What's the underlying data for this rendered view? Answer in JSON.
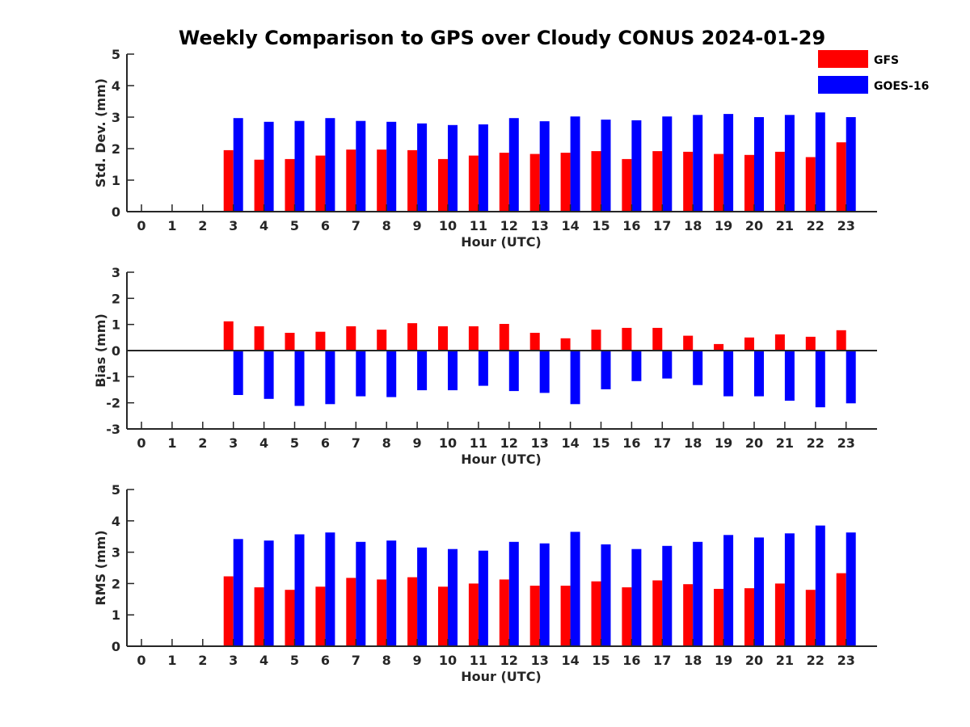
{
  "title": "Weekly Comparison to GPS over Cloudy CONUS 2024-01-29",
  "colors": {
    "GFS": "#ff0000",
    "GOES-16": "#0000ff",
    "axis": "#262626"
  },
  "legend": [
    {
      "label": "GFS",
      "color": "#ff0000"
    },
    {
      "label": "GOES-16",
      "color": "#0000ff"
    }
  ],
  "chart_data": [
    {
      "type": "bar",
      "xlabel": "Hour (UTC)",
      "ylabel": "Std. Dev. (mm)",
      "ylim": [
        0,
        5
      ],
      "yticks": [
        0,
        1,
        2,
        3,
        4,
        5
      ],
      "categories": [
        "0",
        "1",
        "2",
        "3",
        "4",
        "5",
        "6",
        "7",
        "8",
        "9",
        "10",
        "11",
        "12",
        "13",
        "14",
        "15",
        "16",
        "17",
        "18",
        "19",
        "20",
        "21",
        "22",
        "23"
      ],
      "series": [
        {
          "name": "GFS",
          "values": [
            null,
            null,
            null,
            1.95,
            1.65,
            1.67,
            1.78,
            1.97,
            1.97,
            1.95,
            1.67,
            1.78,
            1.87,
            1.83,
            1.87,
            1.92,
            1.67,
            1.92,
            1.9,
            1.83,
            1.8,
            1.9,
            1.73,
            2.2
          ]
        },
        {
          "name": "GOES-16",
          "values": [
            null,
            null,
            null,
            2.97,
            2.85,
            2.88,
            2.97,
            2.88,
            2.85,
            2.8,
            2.75,
            2.77,
            2.97,
            2.87,
            3.02,
            2.92,
            2.9,
            3.02,
            3.07,
            3.1,
            3.0,
            3.07,
            3.15,
            3.0
          ]
        }
      ]
    },
    {
      "type": "bar",
      "xlabel": "Hour (UTC)",
      "ylabel": "Bias (mm)",
      "ylim": [
        -3,
        3
      ],
      "yticks": [
        -3,
        -2,
        -1,
        0,
        1,
        2,
        3
      ],
      "categories": [
        "0",
        "1",
        "2",
        "3",
        "4",
        "5",
        "6",
        "7",
        "8",
        "9",
        "10",
        "11",
        "12",
        "13",
        "14",
        "15",
        "16",
        "17",
        "18",
        "19",
        "20",
        "21",
        "22",
        "23"
      ],
      "series": [
        {
          "name": "GFS",
          "values": [
            null,
            null,
            null,
            1.12,
            0.93,
            0.68,
            0.72,
            0.93,
            0.8,
            1.05,
            0.93,
            0.93,
            1.02,
            0.68,
            0.47,
            0.8,
            0.87,
            0.87,
            0.57,
            0.25,
            0.5,
            0.62,
            0.53,
            0.78
          ]
        },
        {
          "name": "GOES-16",
          "values": [
            null,
            null,
            null,
            -1.7,
            -1.85,
            -2.12,
            -2.05,
            -1.75,
            -1.78,
            -1.52,
            -1.52,
            -1.35,
            -1.55,
            -1.62,
            -2.05,
            -1.48,
            -1.17,
            -1.07,
            -1.32,
            -1.75,
            -1.75,
            -1.92,
            -2.17,
            -2.02
          ]
        }
      ]
    },
    {
      "type": "bar",
      "xlabel": "Hour (UTC)",
      "ylabel": "RMS (mm)",
      "ylim": [
        0,
        5
      ],
      "yticks": [
        0,
        1,
        2,
        3,
        4,
        5
      ],
      "categories": [
        "0",
        "1",
        "2",
        "3",
        "4",
        "5",
        "6",
        "7",
        "8",
        "9",
        "10",
        "11",
        "12",
        "13",
        "14",
        "15",
        "16",
        "17",
        "18",
        "19",
        "20",
        "21",
        "22",
        "23"
      ],
      "series": [
        {
          "name": "GFS",
          "values": [
            null,
            null,
            null,
            2.23,
            1.88,
            1.8,
            1.9,
            2.18,
            2.13,
            2.2,
            1.9,
            2.0,
            2.13,
            1.93,
            1.93,
            2.07,
            1.88,
            2.1,
            1.98,
            1.83,
            1.85,
            2.0,
            1.8,
            2.33
          ]
        },
        {
          "name": "GOES-16",
          "values": [
            null,
            null,
            null,
            3.42,
            3.37,
            3.57,
            3.63,
            3.33,
            3.37,
            3.15,
            3.1,
            3.05,
            3.33,
            3.28,
            3.65,
            3.25,
            3.1,
            3.2,
            3.33,
            3.55,
            3.47,
            3.6,
            3.85,
            3.63
          ]
        }
      ]
    }
  ]
}
